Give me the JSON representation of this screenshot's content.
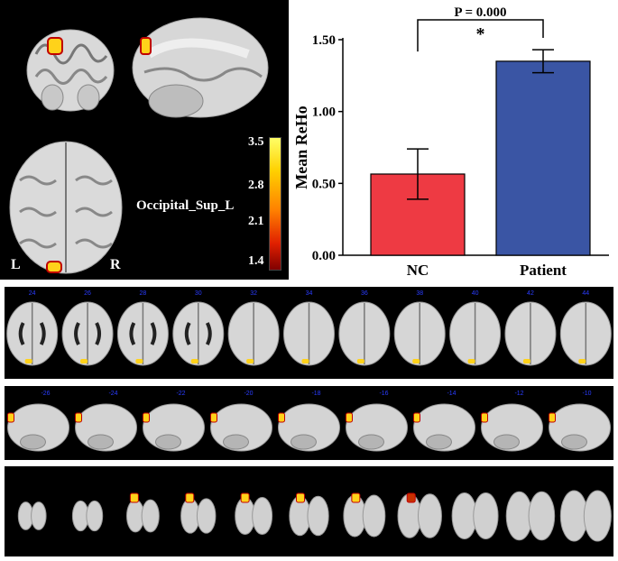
{
  "brain_panel": {
    "left_label": "L",
    "right_label": "R",
    "region_label": "Occipital_Sup_L",
    "colorbar_ticks": [
      "3.5",
      "2.8",
      "2.1",
      "1.4"
    ],
    "colorbar_colors": [
      "#ffff66",
      "#ffd000",
      "#ff8000",
      "#e02000",
      "#800000"
    ]
  },
  "strips": {
    "axial_numbers": [
      "24",
      "26",
      "28",
      "30",
      "32",
      "34",
      "36",
      "38",
      "40",
      "42",
      "44"
    ],
    "sagittal_numbers": [
      "-26",
      "-24",
      "-22",
      "-20",
      "-18",
      "-16",
      "-14",
      "-12",
      "-10"
    ],
    "slice_count_coronal": 11
  },
  "chart_data": {
    "type": "bar",
    "categories": [
      "NC",
      "Patient"
    ],
    "values": [
      0.565,
      1.35
    ],
    "errors": [
      0.175,
      0.08
    ],
    "colors": [
      "#ee3a43",
      "#3a55a4"
    ],
    "xlabel": "",
    "ylabel": "Mean ReHo",
    "ylim": [
      0,
      1.5
    ],
    "yticks": [
      "0.00",
      "0.50",
      "1.00",
      "1.50"
    ],
    "yticks_values": [
      0,
      0.5,
      1.0,
      1.5
    ],
    "significance": {
      "p_text": "P = 0.000",
      "marker": "*"
    }
  }
}
